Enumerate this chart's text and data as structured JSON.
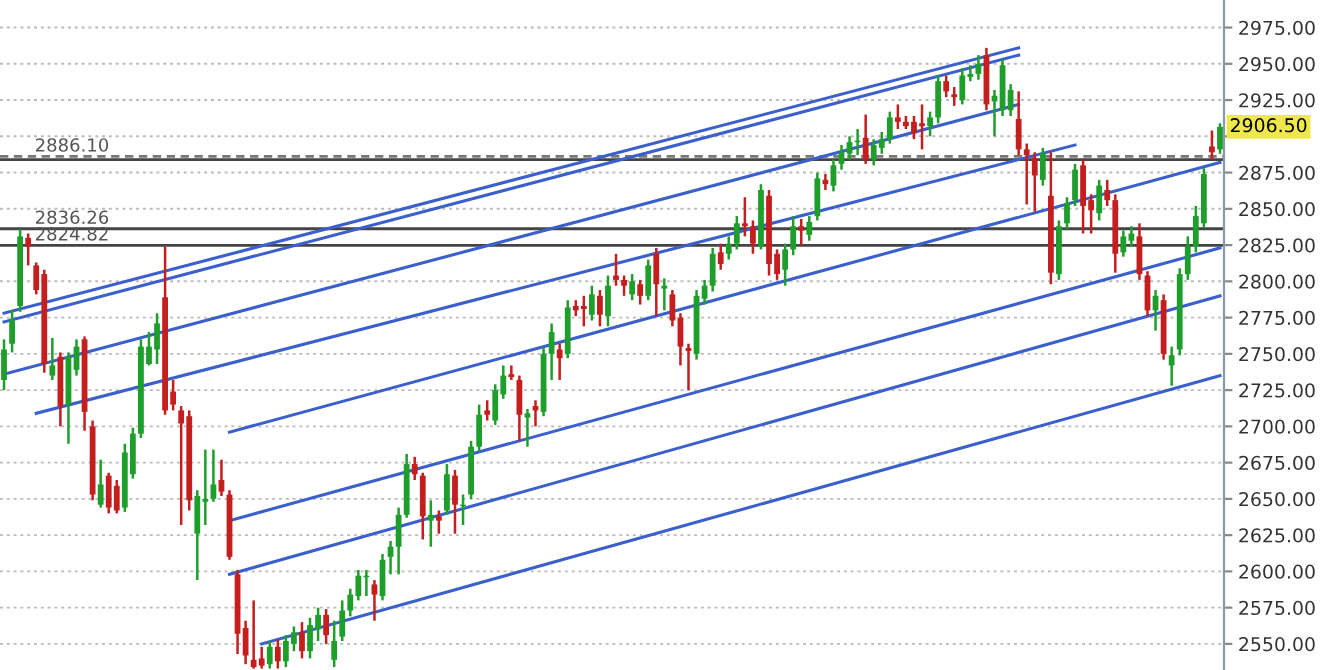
{
  "chart_data": {
    "type": "candlestick",
    "categories": [
      null,
      null,
      null,
      null,
      null,
      null,
      null,
      null,
      null,
      null,
      null,
      null,
      null,
      null,
      null,
      null,
      null,
      null,
      null,
      null,
      null,
      null,
      null,
      null,
      null,
      null,
      null,
      null,
      null,
      null,
      null,
      null,
      null,
      null,
      null,
      null,
      null,
      null,
      null,
      null,
      null,
      null,
      null,
      null,
      null,
      null,
      null,
      null,
      null,
      null,
      null,
      null,
      null,
      null,
      null,
      null,
      null,
      null,
      null,
      null,
      null,
      null,
      null,
      null,
      null,
      null,
      null,
      null,
      null,
      null,
      null,
      null,
      null,
      null,
      null,
      null,
      null,
      null,
      null,
      null,
      null,
      null,
      null,
      null,
      null,
      null,
      null,
      null,
      null,
      null,
      null,
      null,
      null,
      null,
      null,
      null,
      null,
      null,
      null,
      null,
      null,
      null,
      null,
      null,
      null,
      null,
      null,
      null,
      null,
      null,
      null,
      null,
      null,
      null,
      null,
      null,
      null,
      null,
      null,
      null,
      null,
      null,
      null,
      null,
      null,
      null,
      null,
      null,
      null,
      null,
      null,
      null,
      null,
      null,
      null,
      null,
      null,
      null,
      null,
      null,
      null,
      null,
      null,
      null,
      null,
      null,
      null,
      null,
      null,
      null,
      null,
      null
    ],
    "ohlc": [
      [
        2732,
        2760,
        2725,
        2753
      ],
      [
        2757,
        2780,
        2751,
        2773
      ],
      [
        2783,
        2836,
        2779,
        2831
      ],
      [
        2830,
        2833,
        2811,
        2824
      ],
      [
        2811,
        2813,
        2791,
        2794
      ],
      [
        2805,
        2808,
        2737,
        2743
      ],
      [
        2735,
        2761,
        2732,
        2742
      ],
      [
        2748,
        2751,
        2700,
        2714
      ],
      [
        2715,
        2751,
        2688,
        2748
      ],
      [
        2739,
        2760,
        2735,
        2755
      ],
      [
        2760,
        2762,
        2697,
        2710
      ],
      [
        2700,
        2704,
        2649,
        2653
      ],
      [
        2646,
        2677,
        2644,
        2660
      ],
      [
        2666,
        2668,
        2640,
        2644
      ],
      [
        2659,
        2663,
        2640,
        2642
      ],
      [
        2644,
        2688,
        2641,
        2682
      ],
      [
        2667,
        2699,
        2664,
        2695
      ],
      [
        2695,
        2760,
        2692,
        2755
      ],
      [
        2743,
        2765,
        2742,
        2755
      ],
      [
        2753,
        2778,
        2743,
        2771
      ],
      [
        2789,
        2824,
        2708,
        2711
      ],
      [
        2724,
        2732,
        2711,
        2715
      ],
      [
        2711,
        2714,
        2632,
        2702
      ],
      [
        2707,
        2711,
        2642,
        2649
      ],
      [
        2626,
        2656,
        2594,
        2652
      ],
      [
        2648,
        2684,
        2632,
        2650
      ],
      [
        2650,
        2684,
        2648,
        2660
      ],
      [
        2663,
        2677,
        2652,
        2655
      ],
      [
        2653,
        2656,
        2608,
        2610
      ],
      [
        2598,
        2601,
        2543,
        2557
      ],
      [
        2561,
        2566,
        2536,
        2542
      ],
      [
        2539,
        2580,
        2533,
        2534
      ],
      [
        2540,
        2548,
        2533,
        2535
      ],
      [
        2536,
        2552,
        2533,
        2548
      ],
      [
        2548,
        2553,
        2533,
        2538
      ],
      [
        2538,
        2556,
        2534,
        2552
      ],
      [
        2550,
        2562,
        2545,
        2558
      ],
      [
        2558,
        2565,
        2540,
        2545
      ],
      [
        2545,
        2568,
        2540,
        2563
      ],
      [
        2560,
        2575,
        2552,
        2570
      ],
      [
        2570,
        2574,
        2550,
        2556
      ],
      [
        2539,
        2566,
        2534,
        2552
      ],
      [
        2555,
        2580,
        2552,
        2573
      ],
      [
        2573,
        2588,
        2569,
        2584
      ],
      [
        2583,
        2601,
        2580,
        2597
      ],
      [
        2596,
        2601,
        2583,
        2597
      ],
      [
        2591,
        2594,
        2566,
        2584
      ],
      [
        2583,
        2612,
        2580,
        2608
      ],
      [
        2610,
        2621,
        2598,
        2617
      ],
      [
        2617,
        2644,
        2598,
        2639
      ],
      [
        2639,
        2681,
        2637,
        2674
      ],
      [
        2674,
        2679,
        2663,
        2667
      ],
      [
        2666,
        2668,
        2622,
        2638
      ],
      [
        2635,
        2649,
        2617,
        2639
      ],
      [
        2638,
        2642,
        2626,
        2635
      ],
      [
        2642,
        2674,
        2639,
        2667
      ],
      [
        2666,
        2670,
        2626,
        2646
      ],
      [
        2645,
        2653,
        2632,
        2646
      ],
      [
        2653,
        2690,
        2650,
        2686
      ],
      [
        2686,
        2715,
        2683,
        2708
      ],
      [
        2711,
        2718,
        2704,
        2708
      ],
      [
        2704,
        2729,
        2701,
        2725
      ],
      [
        2722,
        2742,
        2719,
        2735
      ],
      [
        2736,
        2742,
        2732,
        2734
      ],
      [
        2732,
        2735,
        2690,
        2708
      ],
      [
        2706,
        2712,
        2686,
        2709
      ],
      [
        2714,
        2718,
        2700,
        2711
      ],
      [
        2710,
        2754,
        2707,
        2750
      ],
      [
        2750,
        2771,
        2732,
        2765
      ],
      [
        2753,
        2757,
        2732,
        2747
      ],
      [
        2750,
        2787,
        2747,
        2782
      ],
      [
        2783,
        2787,
        2776,
        2780
      ],
      [
        2783,
        2790,
        2769,
        2781
      ],
      [
        2777,
        2797,
        2773,
        2791
      ],
      [
        2790,
        2794,
        2769,
        2777
      ],
      [
        2776,
        2804,
        2769,
        2797
      ],
      [
        2804,
        2819,
        2797,
        2801
      ],
      [
        2801,
        2804,
        2790,
        2797
      ],
      [
        2791,
        2805,
        2787,
        2800
      ],
      [
        2798,
        2801,
        2784,
        2790
      ],
      [
        2790,
        2815,
        2787,
        2811
      ],
      [
        2819,
        2823,
        2776,
        2798
      ],
      [
        2795,
        2802,
        2780,
        2797
      ],
      [
        2791,
        2794,
        2769,
        2773
      ],
      [
        2775,
        2778,
        2742,
        2755
      ],
      [
        2754,
        2757,
        2725,
        2752
      ],
      [
        2750,
        2794,
        2746,
        2790
      ],
      [
        2788,
        2801,
        2784,
        2797
      ],
      [
        2797,
        2823,
        2793,
        2819
      ],
      [
        2820,
        2826,
        2808,
        2812
      ],
      [
        2819,
        2831,
        2815,
        2826
      ],
      [
        2826,
        2845,
        2822,
        2840
      ],
      [
        2840,
        2858,
        2831,
        2838
      ],
      [
        2838,
        2842,
        2819,
        2826
      ],
      [
        2824,
        2867,
        2822,
        2863
      ],
      [
        2859,
        2863,
        2804,
        2812
      ],
      [
        2819,
        2822,
        2801,
        2805
      ],
      [
        2808,
        2826,
        2797,
        2822
      ],
      [
        2822,
        2845,
        2818,
        2838
      ],
      [
        2838,
        2843,
        2825,
        2835
      ],
      [
        2832,
        2845,
        2828,
        2841
      ],
      [
        2845,
        2875,
        2842,
        2871
      ],
      [
        2870,
        2874,
        2863,
        2867
      ],
      [
        2866,
        2884,
        2862,
        2880
      ],
      [
        2881,
        2894,
        2877,
        2889
      ],
      [
        2888,
        2900,
        2884,
        2896
      ],
      [
        2896,
        2905,
        2887,
        2897
      ],
      [
        2899,
        2915,
        2881,
        2884
      ],
      [
        2884,
        2898,
        2880,
        2894
      ],
      [
        2892,
        2903,
        2888,
        2898
      ],
      [
        2898,
        2917,
        2895,
        2913
      ],
      [
        2913,
        2922,
        2905,
        2910
      ],
      [
        2910,
        2914,
        2905,
        2907
      ],
      [
        2910,
        2914,
        2898,
        2902
      ],
      [
        2909,
        2922,
        2891,
        2907
      ],
      [
        2907,
        2917,
        2900,
        2913
      ],
      [
        2913,
        2942,
        2909,
        2938
      ],
      [
        2938,
        2942,
        2927,
        2931
      ],
      [
        2929,
        2934,
        2921,
        2927
      ],
      [
        2925,
        2947,
        2922,
        2942
      ],
      [
        2941,
        2949,
        2938,
        2943
      ],
      [
        2943,
        2956,
        2939,
        2950
      ],
      [
        2956,
        2961,
        2918,
        2922
      ],
      [
        2924,
        2932,
        2900,
        2928
      ],
      [
        2918,
        2953,
        2914,
        2949
      ],
      [
        2918,
        2936,
        2914,
        2932
      ],
      [
        2912,
        2931,
        2887,
        2891
      ],
      [
        2891,
        2895,
        2853,
        2887
      ],
      [
        2885,
        2889,
        2848,
        2873
      ],
      [
        2870,
        2892,
        2866,
        2888
      ],
      [
        2859,
        2889,
        2798,
        2806
      ],
      [
        2805,
        2842,
        2801,
        2838
      ],
      [
        2840,
        2858,
        2836,
        2854
      ],
      [
        2856,
        2881,
        2852,
        2877
      ],
      [
        2880,
        2884,
        2833,
        2852
      ],
      [
        2856,
        2860,
        2833,
        2849
      ],
      [
        2847,
        2870,
        2842,
        2866
      ],
      [
        2863,
        2870,
        2852,
        2856
      ],
      [
        2856,
        2860,
        2806,
        2819
      ],
      [
        2820,
        2835,
        2817,
        2831
      ],
      [
        2828,
        2838,
        2824,
        2833
      ],
      [
        2831,
        2840,
        2801,
        2805
      ],
      [
        2804,
        2807,
        2776,
        2780
      ],
      [
        2780,
        2794,
        2766,
        2790
      ],
      [
        2787,
        2791,
        2746,
        2750
      ],
      [
        2742,
        2755,
        2728,
        2749
      ],
      [
        2753,
        2809,
        2749,
        2805
      ],
      [
        2805,
        2831,
        2801,
        2824
      ],
      [
        2824,
        2852,
        2820,
        2845
      ],
      [
        2840,
        2878,
        2837,
        2874
      ],
      [
        2893,
        2904,
        2884,
        2889
      ],
      [
        2891,
        2909,
        2888,
        2906.5
      ]
    ],
    "colors": [
      "#1e9e2b",
      "#1e9e2b",
      "#1e9e2b",
      "#c41e1e",
      "#c41e1e",
      "#c41e1e",
      "#1e9e2b",
      "#c41e1e",
      "#1e9e2b",
      "#1e9e2b",
      "#c41e1e",
      "#c41e1e",
      "#1e9e2b",
      "#c41e1e",
      "#c41e1e",
      "#1e9e2b",
      "#1e9e2b",
      "#1e9e2b",
      "#1e9e2b",
      "#1e9e2b",
      "#c41e1e",
      "#c41e1e",
      "#c41e1e",
      "#c41e1e",
      "#1e9e2b",
      "#1e9e2b",
      "#1e9e2b",
      "#c41e1e",
      "#c41e1e",
      "#c41e1e",
      "#c41e1e",
      "#c41e1e",
      "#c41e1e",
      "#1e9e2b",
      "#c41e1e",
      "#1e9e2b",
      "#1e9e2b",
      "#c41e1e",
      "#1e9e2b",
      "#1e9e2b",
      "#c41e1e",
      "#1e9e2b",
      "#1e9e2b",
      "#1e9e2b",
      "#1e9e2b",
      "#1e9e2b",
      "#c41e1e",
      "#1e9e2b",
      "#1e9e2b",
      "#1e9e2b",
      "#1e9e2b",
      "#c41e1e",
      "#c41e1e",
      "#1e9e2b",
      "#c41e1e",
      "#1e9e2b",
      "#c41e1e",
      "#1e9e2b",
      "#1e9e2b",
      "#1e9e2b",
      "#c41e1e",
      "#1e9e2b",
      "#1e9e2b",
      "#c41e1e",
      "#c41e1e",
      "#1e9e2b",
      "#c41e1e",
      "#1e9e2b",
      "#1e9e2b",
      "#c41e1e",
      "#1e9e2b",
      "#c41e1e",
      "#c41e1e",
      "#1e9e2b",
      "#c41e1e",
      "#1e9e2b",
      "#c41e1e",
      "#c41e1e",
      "#1e9e2b",
      "#c41e1e",
      "#1e9e2b",
      "#c41e1e",
      "#1e9e2b",
      "#c41e1e",
      "#c41e1e",
      "#c41e1e",
      "#1e9e2b",
      "#1e9e2b",
      "#1e9e2b",
      "#c41e1e",
      "#1e9e2b",
      "#1e9e2b",
      "#c41e1e",
      "#c41e1e",
      "#1e9e2b",
      "#c41e1e",
      "#c41e1e",
      "#1e9e2b",
      "#1e9e2b",
      "#c41e1e",
      "#1e9e2b",
      "#1e9e2b",
      "#c41e1e",
      "#1e9e2b",
      "#1e9e2b",
      "#1e9e2b",
      "#1e9e2b",
      "#c41e1e",
      "#1e9e2b",
      "#1e9e2b",
      "#1e9e2b",
      "#c41e1e",
      "#c41e1e",
      "#c41e1e",
      "#c41e1e",
      "#1e9e2b",
      "#1e9e2b",
      "#c41e1e",
      "#c41e1e",
      "#1e9e2b",
      "#1e9e2b",
      "#1e9e2b",
      "#c41e1e",
      "#1e9e2b",
      "#1e9e2b",
      "#1e9e2b",
      "#c41e1e",
      "#c41e1e",
      "#c41e1e",
      "#1e9e2b",
      "#c41e1e",
      "#1e9e2b",
      "#1e9e2b",
      "#1e9e2b",
      "#c41e1e",
      "#c41e1e",
      "#1e9e2b",
      "#c41e1e",
      "#c41e1e",
      "#1e9e2b",
      "#1e9e2b",
      "#c41e1e",
      "#c41e1e",
      "#1e9e2b",
      "#c41e1e",
      "#1e9e2b",
      "#1e9e2b",
      "#1e9e2b",
      "#1e9e2b",
      "#1e9e2b",
      "#c41e1e",
      "#1e9e2b"
    ],
    "series": [
      {
        "type": "line",
        "color": "#3b5fcc",
        "values": [
          2778,
          null,
          null,
          null,
          null,
          null,
          null,
          null,
          null,
          null,
          null,
          null,
          null,
          null,
          null,
          null,
          null,
          null,
          null,
          null,
          null,
          null,
          null,
          null,
          null,
          null,
          null,
          null,
          null,
          null,
          null,
          null,
          null,
          null,
          null,
          null,
          null,
          null,
          null,
          null,
          null,
          null,
          null,
          null,
          null,
          null,
          null,
          null,
          null,
          null,
          null,
          null,
          null,
          null,
          null,
          null,
          null,
          null,
          null,
          null,
          null,
          null,
          null,
          null,
          null,
          null,
          null,
          null,
          null,
          null,
          null,
          null,
          null,
          null,
          null,
          null,
          null,
          null,
          null,
          null,
          null,
          null,
          null,
          null,
          null,
          null,
          null,
          null,
          null,
          null,
          null,
          null,
          null,
          null,
          null,
          null,
          null,
          null,
          null,
          null,
          null,
          null,
          null,
          null,
          null,
          null,
          null,
          null,
          null,
          null,
          null,
          null,
          null,
          null,
          null,
          null,
          null,
          null,
          null,
          null,
          null,
          null,
          null,
          null,
          null,
          null,
          2961,
          null,
          null,
          null,
          null,
          null,
          null,
          null,
          null,
          null,
          null,
          null,
          null,
          null,
          null,
          null,
          null,
          null,
          null,
          null,
          null,
          null,
          null,
          null,
          null,
          null
        ]
      },
      {
        "type": "line",
        "color": "#3b5fcc",
        "values": [
          2772,
          null,
          null,
          null,
          null,
          null,
          null,
          null,
          null,
          null,
          null,
          null,
          null,
          null,
          null,
          null,
          null,
          null,
          null,
          null,
          null,
          null,
          null,
          null,
          null,
          null,
          null,
          null,
          null,
          null,
          null,
          null,
          null,
          null,
          null,
          null,
          null,
          null,
          null,
          null,
          null,
          null,
          null,
          null,
          null,
          null,
          null,
          null,
          null,
          null,
          null,
          null,
          null,
          null,
          null,
          null,
          null,
          null,
          null,
          null,
          null,
          null,
          null,
          null,
          null,
          null,
          null,
          null,
          null,
          null,
          null,
          null,
          null,
          null,
          null,
          null,
          null,
          null,
          null,
          null,
          null,
          null,
          null,
          null,
          null,
          null,
          null,
          null,
          null,
          null,
          null,
          null,
          null,
          null,
          null,
          null,
          null,
          null,
          null,
          null,
          null,
          null,
          null,
          null,
          null,
          null,
          null,
          null,
          null,
          null,
          null,
          null,
          null,
          null,
          null,
          null,
          null,
          null,
          null,
          null,
          null,
          null,
          null,
          null,
          null,
          null,
          2956,
          null,
          null,
          null,
          null,
          null,
          null,
          null,
          null,
          null,
          null,
          null,
          null,
          null,
          null,
          null,
          null,
          null,
          null,
          null,
          null,
          null,
          null,
          null,
          null,
          null
        ]
      },
      {
        "type": "line",
        "color": "#3b5fcc",
        "values": [
          2736,
          null,
          null,
          null,
          null,
          null,
          null,
          null,
          null,
          null,
          null,
          null,
          null,
          null,
          null,
          null,
          null,
          null,
          null,
          null,
          null,
          null,
          null,
          null,
          null,
          null,
          null,
          null,
          null,
          null,
          null,
          null,
          null,
          null,
          null,
          null,
          null,
          null,
          null,
          null,
          null,
          null,
          null,
          null,
          null,
          null,
          null,
          null,
          null,
          null,
          null,
          null,
          null,
          null,
          null,
          null,
          null,
          null,
          null,
          null,
          null,
          null,
          null,
          null,
          null,
          null,
          null,
          null,
          null,
          null,
          null,
          null,
          null,
          null,
          null,
          null,
          null,
          null,
          null,
          null,
          null,
          null,
          null,
          null,
          null,
          null,
          null,
          null,
          null,
          null,
          null,
          null,
          null,
          null,
          null,
          null,
          null,
          null,
          null,
          null,
          null,
          null,
          null,
          null,
          null,
          null,
          null,
          null,
          null,
          null,
          null,
          null,
          null,
          null,
          null,
          null,
          null,
          null,
          null,
          null,
          null,
          null,
          null,
          null,
          null,
          null,
          2922,
          null,
          null,
          null,
          null,
          null,
          null,
          null,
          null,
          null,
          null,
          null,
          null,
          null,
          null,
          null,
          null,
          null,
          null,
          null,
          null,
          null,
          null,
          null,
          null,
          null
        ]
      },
      {
        "type": "line",
        "color": "#3b5fcc",
        "values": [
          null,
          null,
          null,
          null,
          2709,
          null,
          null,
          null,
          null,
          null,
          null,
          null,
          null,
          null,
          null,
          null,
          null,
          null,
          null,
          null,
          null,
          null,
          null,
          null,
          null,
          null,
          null,
          null,
          null,
          null,
          null,
          null,
          null,
          null,
          null,
          null,
          null,
          null,
          null,
          null,
          null,
          null,
          null,
          null,
          null,
          null,
          null,
          null,
          null,
          null,
          null,
          null,
          null,
          null,
          null,
          null,
          null,
          null,
          null,
          null,
          null,
          null,
          null,
          null,
          null,
          null,
          null,
          null,
          null,
          null,
          null,
          null,
          null,
          null,
          null,
          null,
          null,
          null,
          null,
          null,
          null,
          null,
          null,
          null,
          null,
          null,
          null,
          null,
          null,
          null,
          null,
          null,
          null,
          null,
          null,
          null,
          null,
          null,
          null,
          null,
          null,
          null,
          null,
          null,
          null,
          null,
          null,
          null,
          null,
          null,
          null,
          null,
          null,
          null,
          null,
          null,
          null,
          null,
          null,
          null,
          null,
          null,
          null,
          null,
          null,
          null,
          null,
          null,
          null,
          null,
          null,
          null,
          null,
          2894,
          null,
          null,
          null,
          null,
          null,
          null,
          null,
          null,
          null,
          null,
          null,
          null,
          null,
          null,
          null,
          null,
          null,
          null
        ]
      },
      {
        "type": "line",
        "color": "#3b5fcc",
        "values": [
          null,
          null,
          null,
          null,
          null,
          null,
          null,
          null,
          null,
          null,
          null,
          null,
          null,
          null,
          null,
          null,
          null,
          null,
          null,
          null,
          null,
          null,
          null,
          null,
          null,
          null,
          null,
          null,
          2696,
          null,
          null,
          null,
          null,
          null,
          null,
          null,
          null,
          null,
          null,
          null,
          null,
          null,
          null,
          null,
          null,
          null,
          null,
          null,
          null,
          null,
          null,
          null,
          null,
          null,
          null,
          null,
          null,
          null,
          null,
          null,
          null,
          null,
          null,
          null,
          null,
          null,
          null,
          null,
          null,
          null,
          null,
          null,
          null,
          null,
          null,
          null,
          null,
          null,
          null,
          null,
          null,
          null,
          null,
          null,
          null,
          null,
          null,
          null,
          null,
          null,
          null,
          null,
          null,
          null,
          null,
          null,
          null,
          null,
          null,
          null,
          null,
          null,
          null,
          null,
          null,
          null,
          null,
          null,
          null,
          null,
          null,
          null,
          null,
          null,
          null,
          null,
          null,
          null,
          null,
          null,
          null,
          null,
          null,
          null,
          null,
          null,
          null,
          null,
          null,
          null,
          null,
          null,
          null,
          null,
          null,
          null,
          null,
          null,
          null,
          null,
          null,
          null,
          null,
          null,
          null,
          null,
          null,
          null,
          null,
          null,
          null,
          2882
        ]
      },
      {
        "type": "line",
        "color": "#3b5fcc",
        "values": [
          null,
          null,
          null,
          null,
          null,
          null,
          null,
          null,
          null,
          null,
          null,
          null,
          null,
          null,
          null,
          null,
          null,
          null,
          null,
          null,
          null,
          null,
          null,
          null,
          null,
          null,
          null,
          null,
          2635,
          null,
          null,
          null,
          null,
          null,
          null,
          null,
          null,
          null,
          null,
          null,
          null,
          null,
          null,
          null,
          null,
          null,
          null,
          null,
          null,
          null,
          null,
          null,
          null,
          null,
          null,
          null,
          null,
          null,
          null,
          null,
          null,
          null,
          null,
          null,
          null,
          null,
          null,
          null,
          null,
          null,
          null,
          null,
          null,
          null,
          null,
          null,
          null,
          null,
          null,
          null,
          null,
          null,
          null,
          null,
          null,
          null,
          null,
          null,
          null,
          null,
          null,
          null,
          null,
          null,
          null,
          null,
          null,
          null,
          null,
          null,
          null,
          null,
          null,
          null,
          null,
          null,
          null,
          null,
          null,
          null,
          null,
          null,
          null,
          null,
          null,
          null,
          null,
          null,
          null,
          null,
          null,
          null,
          null,
          null,
          null,
          null,
          null,
          null,
          null,
          null,
          null,
          null,
          null,
          null,
          null,
          null,
          null,
          null,
          null,
          null,
          null,
          null,
          null,
          null,
          null,
          null,
          null,
          null,
          null,
          null,
          null,
          2823
        ]
      },
      {
        "type": "line",
        "color": "#3b5fcc",
        "values": [
          null,
          null,
          null,
          null,
          null,
          null,
          null,
          null,
          null,
          null,
          null,
          null,
          null,
          null,
          null,
          null,
          null,
          null,
          null,
          null,
          null,
          null,
          null,
          null,
          null,
          null,
          null,
          null,
          2598,
          null,
          null,
          null,
          null,
          null,
          null,
          null,
          null,
          null,
          null,
          null,
          null,
          null,
          null,
          null,
          null,
          null,
          null,
          null,
          null,
          null,
          null,
          null,
          null,
          null,
          null,
          null,
          null,
          null,
          null,
          null,
          null,
          null,
          null,
          null,
          null,
          null,
          null,
          null,
          null,
          null,
          null,
          null,
          null,
          null,
          null,
          null,
          null,
          null,
          null,
          null,
          null,
          null,
          null,
          null,
          null,
          null,
          null,
          null,
          null,
          null,
          null,
          null,
          null,
          null,
          null,
          null,
          null,
          null,
          null,
          null,
          null,
          null,
          null,
          null,
          null,
          null,
          null,
          null,
          null,
          null,
          null,
          null,
          null,
          null,
          null,
          null,
          null,
          null,
          null,
          null,
          null,
          null,
          null,
          null,
          null,
          null,
          null,
          null,
          null,
          null,
          null,
          null,
          null,
          null,
          null,
          null,
          null,
          null,
          null,
          null,
          null,
          null,
          null,
          null,
          null,
          null,
          null,
          null,
          null,
          null,
          null,
          2790
        ]
      },
      {
        "type": "line",
        "color": "#3b5fcc",
        "values": [
          null,
          null,
          null,
          null,
          null,
          null,
          null,
          null,
          null,
          null,
          null,
          null,
          null,
          null,
          null,
          null,
          null,
          null,
          null,
          null,
          null,
          null,
          null,
          null,
          null,
          null,
          null,
          null,
          null,
          null,
          null,
          null,
          2550,
          null,
          null,
          null,
          null,
          null,
          null,
          null,
          null,
          null,
          null,
          null,
          null,
          null,
          null,
          null,
          null,
          null,
          null,
          null,
          null,
          null,
          null,
          null,
          null,
          null,
          null,
          null,
          null,
          null,
          null,
          null,
          null,
          null,
          null,
          null,
          null,
          null,
          null,
          null,
          null,
          null,
          null,
          null,
          null,
          null,
          null,
          null,
          null,
          null,
          null,
          null,
          null,
          null,
          null,
          null,
          null,
          null,
          null,
          null,
          null,
          null,
          null,
          null,
          null,
          null,
          null,
          null,
          null,
          null,
          null,
          null,
          null,
          null,
          null,
          null,
          null,
          null,
          null,
          null,
          null,
          null,
          null,
          null,
          null,
          null,
          null,
          null,
          null,
          null,
          null,
          null,
          null,
          null,
          null,
          null,
          null,
          null,
          null,
          null,
          null,
          null,
          null,
          null,
          null,
          null,
          null,
          null,
          null,
          null,
          null,
          null,
          null,
          null,
          null,
          null,
          null,
          null,
          null,
          2735
        ]
      }
    ],
    "ref_lines": [
      {
        "axis": "y",
        "value": 2886.1,
        "label": "2886.10",
        "color": "#777777",
        "line_style": "dashed"
      },
      {
        "axis": "y",
        "value": 2884,
        "color": "#444444",
        "line_style": "solid"
      },
      {
        "axis": "y",
        "value": 2836.26,
        "label": "2836.26",
        "color": "#444444",
        "line_style": "solid"
      },
      {
        "axis": "y",
        "value": 2824.82,
        "label": "2824.82",
        "color": "#444444",
        "line_style": "solid"
      }
    ],
    "annotations": [
      "2906.50"
    ],
    "ylim": [
      2532,
      2994
    ],
    "yticks": [
      {
        "value": 2550,
        "label": "2550.00"
      },
      {
        "value": 2575,
        "label": "2575.00"
      },
      {
        "value": 2600,
        "label": "2600.00"
      },
      {
        "value": 2625,
        "label": "2625.00"
      },
      {
        "value": 2650,
        "label": "2650.00"
      },
      {
        "value": 2675,
        "label": "2675.00"
      },
      {
        "value": 2700,
        "label": "2700.00"
      },
      {
        "value": 2725,
        "label": "2725.00"
      },
      {
        "value": 2750,
        "label": "2750.00"
      },
      {
        "value": 2775,
        "label": "2775.00"
      },
      {
        "value": 2800,
        "label": "2800.00"
      },
      {
        "value": 2825,
        "label": "2825.00"
      },
      {
        "value": 2850,
        "label": "2850.00"
      },
      {
        "value": 2875,
        "label": "2875.00"
      },
      {
        "value": 2900,
        "label": null
      },
      {
        "value": 2925,
        "label": "2925.00"
      },
      {
        "value": 2950,
        "label": "2950.00"
      },
      {
        "value": 2975,
        "label": "2975.00"
      }
    ],
    "grid": "y"
  }
}
